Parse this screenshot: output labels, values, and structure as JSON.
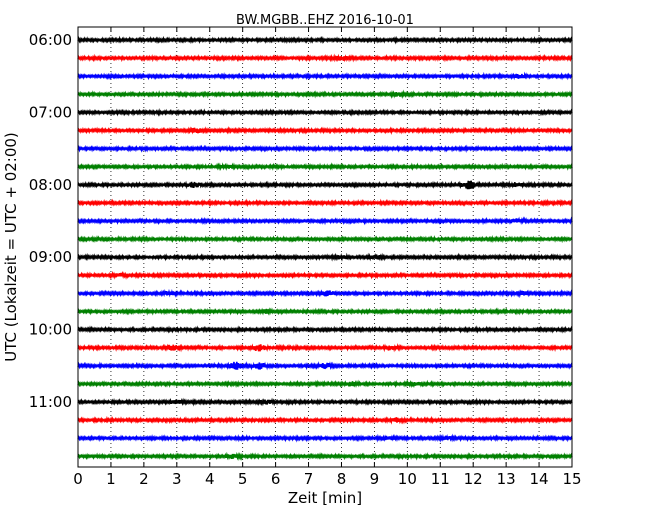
{
  "chart_data": {
    "type": "line",
    "title": "BW.MGBB..EHZ 2016-10-01",
    "xlabel": "Zeit  [min]",
    "ylabel": "UTC (Lokalzeit = UTC + 02:00)",
    "xlim": [
      0,
      15
    ],
    "x_ticks": [
      0,
      1,
      2,
      3,
      4,
      5,
      6,
      7,
      8,
      9,
      10,
      11,
      12,
      13,
      14,
      15
    ],
    "x_tick_labels": [
      "0",
      "1",
      "2",
      "3",
      "4",
      "5",
      "6",
      "7",
      "8",
      "9",
      "10",
      "11",
      "12",
      "13",
      "14",
      "15"
    ],
    "y_tick_labels": [
      "06:00",
      "07:00",
      "08:00",
      "09:00",
      "10:00",
      "11:00"
    ],
    "grid": {
      "vertical": "dotted",
      "horizontal": false
    },
    "trace_interval_min": 15,
    "trace_colors": [
      "#000000",
      "#ff0000",
      "#0000ff",
      "#008000"
    ],
    "traces": [
      {
        "start": "06:00",
        "color": "#000000",
        "events": []
      },
      {
        "start": "06:15",
        "color": "#ff0000",
        "events": [
          {
            "t": 8.0,
            "amp": 1.5
          }
        ]
      },
      {
        "start": "06:30",
        "color": "#0000ff",
        "events": [
          {
            "t": 13.4,
            "amp": 1.3
          }
        ]
      },
      {
        "start": "06:45",
        "color": "#008000",
        "events": [
          {
            "t": 9.7,
            "amp": 1.3
          }
        ]
      },
      {
        "start": "07:00",
        "color": "#000000",
        "events": []
      },
      {
        "start": "07:15",
        "color": "#ff0000",
        "events": [
          {
            "t": 3.6,
            "amp": 1.8
          }
        ]
      },
      {
        "start": "07:30",
        "color": "#0000ff",
        "events": []
      },
      {
        "start": "07:45",
        "color": "#008000",
        "events": [
          {
            "t": 4.5,
            "amp": 1.2
          }
        ]
      },
      {
        "start": "08:00",
        "color": "#000000",
        "events": [
          {
            "t": 3.5,
            "amp": 2.2
          },
          {
            "t": 11.9,
            "amp": 4.0
          },
          {
            "t": 13.3,
            "amp": 1.6
          }
        ]
      },
      {
        "start": "08:15",
        "color": "#ff0000",
        "events": []
      },
      {
        "start": "08:30",
        "color": "#0000ff",
        "events": [
          {
            "t": 13.3,
            "amp": 1.5
          }
        ]
      },
      {
        "start": "08:45",
        "color": "#008000",
        "events": []
      },
      {
        "start": "09:00",
        "color": "#000000",
        "events": [
          {
            "t": 8.0,
            "amp": 1.3
          },
          {
            "t": 9.0,
            "amp": 1.8
          }
        ]
      },
      {
        "start": "09:15",
        "color": "#ff0000",
        "events": [
          {
            "t": 1.2,
            "amp": 1.3
          }
        ]
      },
      {
        "start": "09:30",
        "color": "#0000ff",
        "events": [
          {
            "t": 2.8,
            "amp": 1.4
          },
          {
            "t": 7.6,
            "amp": 2.2
          },
          {
            "t": 13.5,
            "amp": 1.7
          }
        ]
      },
      {
        "start": "09:45",
        "color": "#008000",
        "events": [
          {
            "t": 5.7,
            "amp": 1.5
          }
        ]
      },
      {
        "start": "10:00",
        "color": "#000000",
        "events": []
      },
      {
        "start": "10:15",
        "color": "#ff0000",
        "events": [
          {
            "t": 2.9,
            "amp": 2.6
          },
          {
            "t": 5.5,
            "amp": 2.8
          },
          {
            "t": 9.5,
            "amp": 1.6
          }
        ]
      },
      {
        "start": "10:30",
        "color": "#0000ff",
        "events": [
          {
            "t": 4.8,
            "amp": 3.4
          },
          {
            "t": 5.5,
            "amp": 2.6
          },
          {
            "t": 7.5,
            "amp": 1.8
          }
        ]
      },
      {
        "start": "10:45",
        "color": "#008000",
        "events": [
          {
            "t": 8.3,
            "amp": 1.6
          },
          {
            "t": 10.2,
            "amp": 1.6
          }
        ]
      },
      {
        "start": "11:00",
        "color": "#000000",
        "events": [
          {
            "t": 3.0,
            "amp": 1.5
          },
          {
            "t": 5.7,
            "amp": 1.3
          }
        ]
      },
      {
        "start": "11:15",
        "color": "#ff0000",
        "events": [
          {
            "t": 9.7,
            "amp": 1.6
          }
        ]
      },
      {
        "start": "11:30",
        "color": "#0000ff",
        "events": [
          {
            "t": 9.4,
            "amp": 1.3
          },
          {
            "t": 11.2,
            "amp": 1.3
          }
        ]
      },
      {
        "start": "11:45",
        "color": "#008000",
        "events": [
          {
            "t": 4.7,
            "amp": 1.2
          }
        ]
      }
    ]
  }
}
